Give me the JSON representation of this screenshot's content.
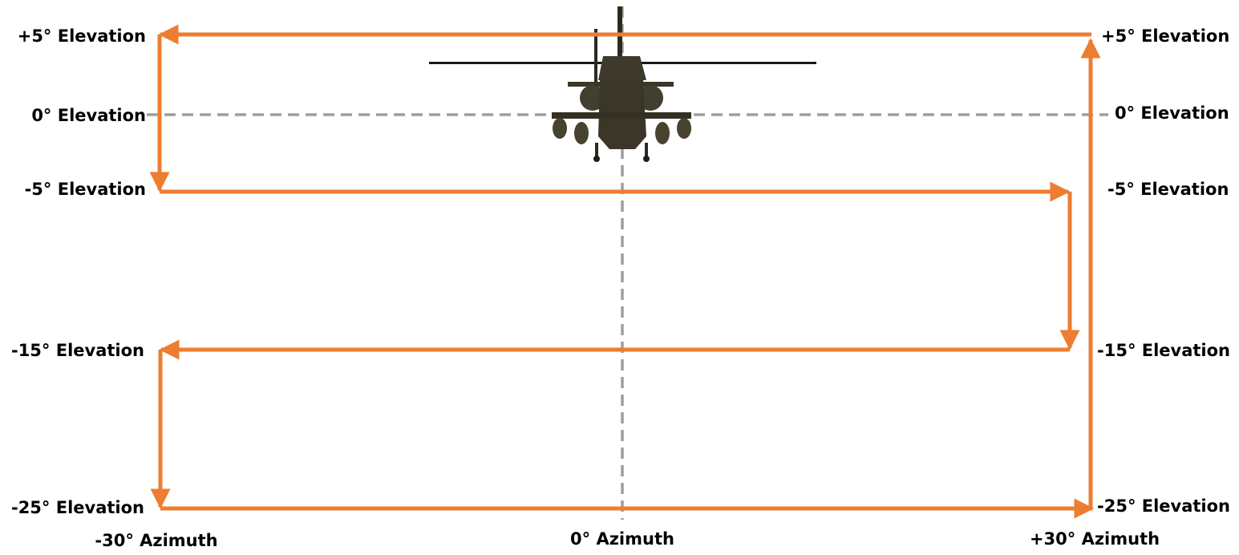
{
  "labels": {
    "left": {
      "plus5": "+5° Elevation",
      "zero": "0° Elevation",
      "minus5": "-5° Elevation",
      "minus15": "-15° Elevation",
      "minus25": "-25° Elevation"
    },
    "right": {
      "plus5": "+5° Elevation",
      "zero": "0° Elevation",
      "minus5": "-5° Elevation",
      "minus15": "-15° Elevation",
      "minus25": "-25° Elevation"
    },
    "azimuth": {
      "left": "-30° Azimuth",
      "center": "0° Azimuth",
      "right": "+30° Azimuth"
    }
  },
  "colors": {
    "scan_path": "#ED7D31",
    "reference_lines": "#9E9E9E",
    "text": "#000000"
  },
  "icons": {
    "aircraft": "helicopter-front-view"
  }
}
